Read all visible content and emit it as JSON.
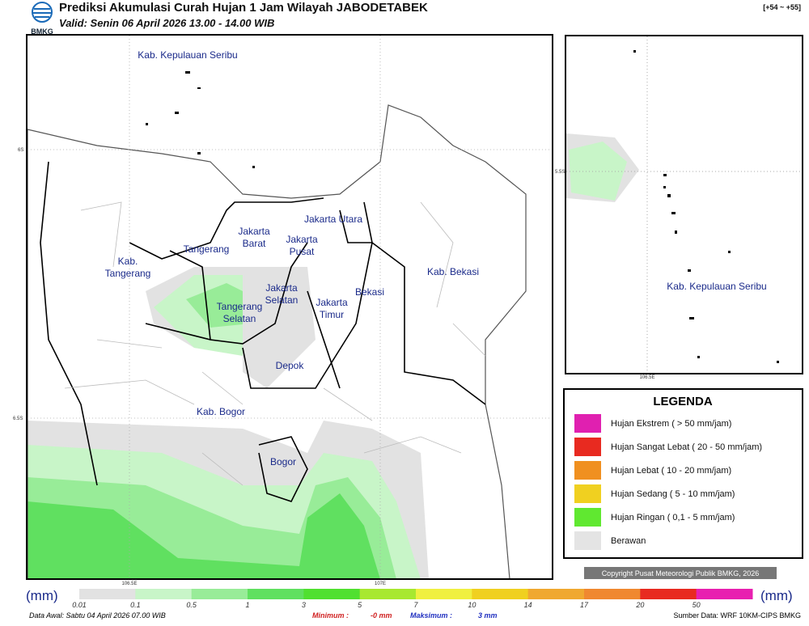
{
  "header": {
    "logo": "BMKG",
    "title": "Prediksi Akumulasi Curah Hujan 1 Jam Wilayah JABODETABEK",
    "valid": "Valid: Senin 06 April 2026 13.00 - 14.00 WIB",
    "range": "[+54 ~ +55]"
  },
  "map": {
    "labels": [
      "Kab. Kepulauan Seribu",
      "Jakarta Utara",
      "Jakarta Barat",
      "Jakarta Pusat",
      "Tangerang",
      "Kab. Tangerang",
      "Jakarta Selatan",
      "Jakarta Timur",
      "Bekasi",
      "Kab. Bekasi",
      "Tangerang Selatan",
      "Depok",
      "Kab. Bogor",
      "Bogor"
    ],
    "grid_labels": [
      "6S",
      "6.5S",
      "106.5E",
      "107E"
    ]
  },
  "inset": {
    "label": "Kab. Kepulauan Seribu",
    "grid_labels": [
      "5.5S",
      "106.5E"
    ]
  },
  "legend": {
    "title": "LEGENDA",
    "items": [
      {
        "label": "Hujan Ekstrem ( > 50 mm/jam)",
        "color": "#e020b0"
      },
      {
        "label": "Hujan Sangat Lebat ( 20 - 50 mm/jam)",
        "color": "#e82a20"
      },
      {
        "label": "Hujan Lebat ( 10 - 20 mm/jam)",
        "color": "#f09020"
      },
      {
        "label": "Hujan Sedang ( 5 - 10 mm/jam)",
        "color": "#f0d020"
      },
      {
        "label": "Hujan Ringan ( 0,1 - 5 mm/jam)",
        "color": "#60e830"
      },
      {
        "label": "Berawan",
        "color": "#e4e4e4"
      }
    ]
  },
  "copyright": "Copyright Pusat Meteorologi Publik BMKG, 2026",
  "colorbar": {
    "unit": "(mm)",
    "ticks": [
      "0.01",
      "0.1",
      "0.5",
      "1",
      "3",
      "5",
      "7",
      "10",
      "14",
      "17",
      "20",
      "50"
    ],
    "colors": [
      "#e2e2e2",
      "#c8f5c8",
      "#98ec98",
      "#60e060",
      "#50e030",
      "#a8e830",
      "#f0f040",
      "#f0d020",
      "#f0a830",
      "#f08830",
      "#e82a20",
      "#e820b0"
    ]
  },
  "footer": {
    "initial": "Data Awal: Sabtu 04 April 2026 07.00 WIB",
    "min_label": "Minimum :",
    "min_value": "-0 mm",
    "max_label": "Maksimum :",
    "max_value": "3 mm",
    "source": "Sumber Data: WRF 10KM-CIPS BMKG"
  }
}
